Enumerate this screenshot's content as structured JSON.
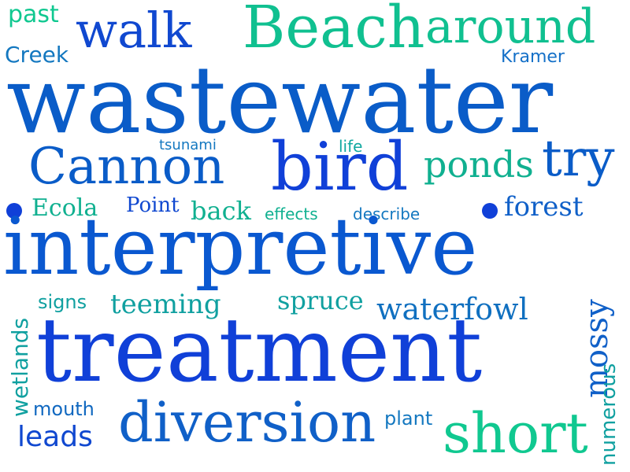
{
  "palette": {
    "royal_blue": "#1040d8",
    "mid_blue": "#0a5cc8",
    "sky_blue": "#1470c8",
    "teal": "#10a0a0",
    "mint": "#10c890",
    "sea_green": "#20b890"
  },
  "words": [
    {
      "text": "past",
      "color": "#10c890"
    },
    {
      "text": "walk",
      "color": "#1048d0"
    },
    {
      "text": "Beach",
      "color": "#10c090"
    },
    {
      "text": "around",
      "color": "#10c090"
    },
    {
      "text": "Creek",
      "color": "#1478c0"
    },
    {
      "text": "Kramer",
      "color": "#1470c8"
    },
    {
      "text": "wastewater",
      "color": "#0a5cc8"
    },
    {
      "text": "tsunami",
      "color": "#1478c0"
    },
    {
      "text": "life",
      "color": "#10a8a0"
    },
    {
      "text": "Cannon",
      "color": "#0a5cc8"
    },
    {
      "text": "bird",
      "color": "#1040d8"
    },
    {
      "text": "ponds",
      "color": "#10b090"
    },
    {
      "text": "try",
      "color": "#0a5cc8"
    },
    {
      "text": "Ecola",
      "color": "#10b090"
    },
    {
      "text": "Point",
      "color": "#1048d0"
    },
    {
      "text": "back",
      "color": "#10b090"
    },
    {
      "text": "effects",
      "color": "#10b090"
    },
    {
      "text": "describe",
      "color": "#1478c0"
    },
    {
      "text": "forest",
      "color": "#1060c8"
    },
    {
      "text": "interpretive",
      "color": "#0a58d0"
    },
    {
      "text": "signs",
      "color": "#10a0a0"
    },
    {
      "text": "teeming",
      "color": "#10a0a0"
    },
    {
      "text": "spruce",
      "color": "#10a0a0"
    },
    {
      "text": "waterfowl",
      "color": "#1070c0"
    },
    {
      "text": "wetlands",
      "color": "#10a0a0"
    },
    {
      "text": "mossy",
      "color": "#1060c8"
    },
    {
      "text": "treatment",
      "color": "#1040d8"
    },
    {
      "text": "numerous",
      "color": "#10a0a0"
    },
    {
      "text": "mouth",
      "color": "#1068c0"
    },
    {
      "text": "diversion",
      "color": "#1060c8"
    },
    {
      "text": "plant",
      "color": "#1478c0"
    },
    {
      "text": "leads",
      "color": "#1048d0"
    },
    {
      "text": "short",
      "color": "#10c890"
    }
  ]
}
